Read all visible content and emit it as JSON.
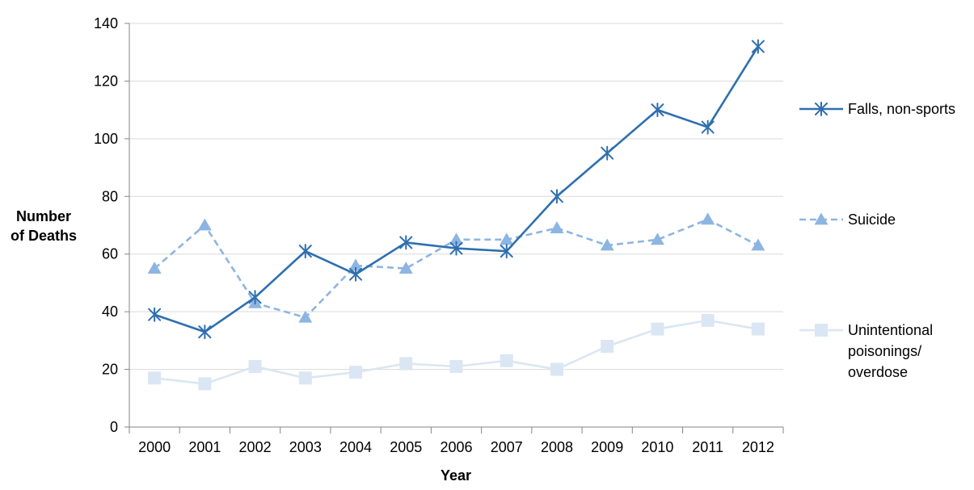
{
  "chart_data": {
    "type": "line",
    "x": [
      "2000",
      "2001",
      "2002",
      "2003",
      "2004",
      "2005",
      "2006",
      "2007",
      "2008",
      "2009",
      "2010",
      "2011",
      "2012"
    ],
    "xlabel": "Year",
    "ylabel_lines": [
      "Number",
      "of Deaths"
    ],
    "ylim": [
      0,
      140
    ],
    "yticks": [
      0,
      20,
      40,
      60,
      80,
      100,
      120,
      140
    ],
    "grid": true,
    "legend_position": "right",
    "series": [
      {
        "name": "Falls, non-sports",
        "name_lines": [
          "Falls, non-sports"
        ],
        "values": [
          39,
          33,
          45,
          61,
          53,
          64,
          62,
          61,
          80,
          95,
          110,
          104,
          132
        ],
        "color": "#2E6FB0",
        "marker": "asterisk",
        "dash": "solid"
      },
      {
        "name": "Suicide",
        "name_lines": [
          "Suicide"
        ],
        "values": [
          55,
          70,
          43,
          38,
          56,
          55,
          65,
          65,
          69,
          63,
          65,
          72,
          63
        ],
        "color": "#8DB5E1",
        "marker": "triangle",
        "dash": "dashed"
      },
      {
        "name": "Unintentional poisonings/ overdose",
        "name_lines": [
          "Unintentional",
          "poisonings/",
          "overdose"
        ],
        "values": [
          17,
          15,
          21,
          17,
          19,
          22,
          21,
          23,
          20,
          28,
          34,
          37,
          34
        ],
        "color": "#DAE6F3",
        "marker": "square",
        "dash": "solid"
      }
    ]
  }
}
